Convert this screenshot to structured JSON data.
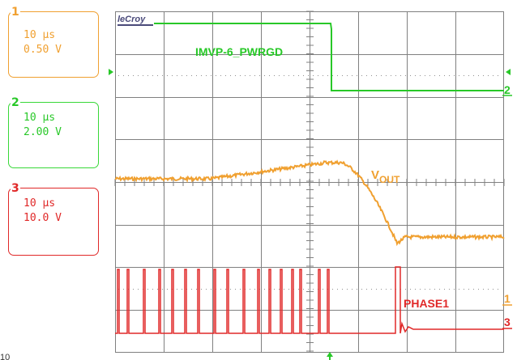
{
  "channels": [
    {
      "number": "1",
      "timebase": "10 µs",
      "scale": "0.50 V",
      "color": "#f0a030"
    },
    {
      "number": "2",
      "timebase": "10 µs",
      "scale": "2.00 V",
      "color": "#28c828"
    },
    {
      "number": "3",
      "timebase": "10 µs",
      "scale": "10.0 V",
      "color": "#e02828"
    }
  ],
  "brand": "leCroy",
  "traces": {
    "pwrgd_label": "IMVP-6_PWRGD",
    "vout_label_main": "V",
    "vout_label_sub": "OUT",
    "phase_label": "PHASE1"
  },
  "markers": {
    "ch2_right": "2",
    "ch1_right": "1",
    "ch3_right": "3",
    "bottom_left": "10"
  },
  "colors": {
    "grid": "#808080",
    "ch1": "#f0a030",
    "ch2": "#28c828",
    "ch3": "#e02828"
  }
}
